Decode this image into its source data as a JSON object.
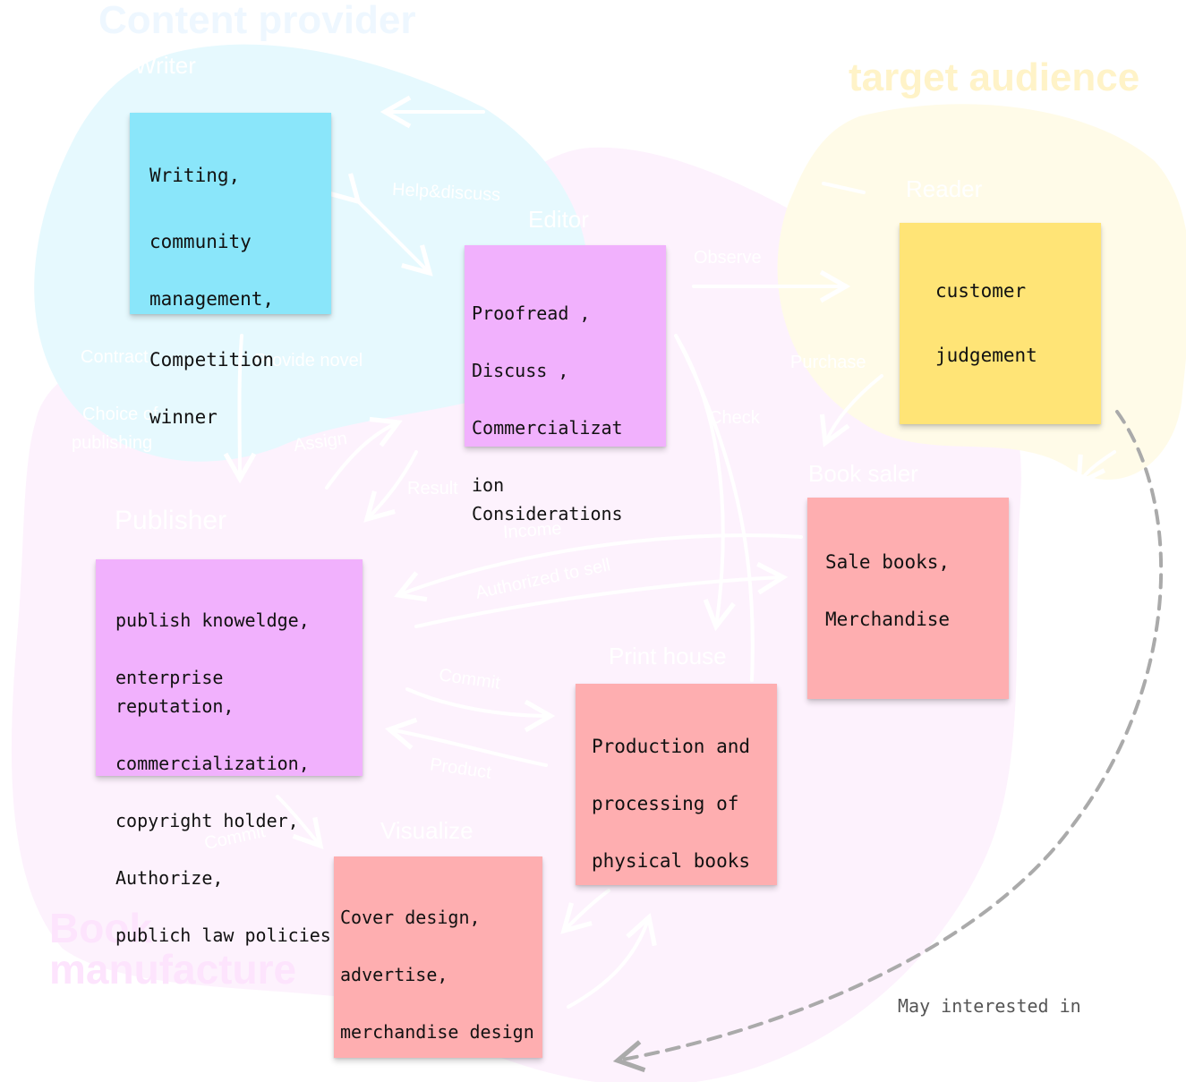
{
  "colors": {
    "content_blob": "#e6f9fe",
    "audience_blob": "#fffbe8",
    "manufacture_blob": "#fdf2fd",
    "note_cyan": "#8ae6fa",
    "note_magenta": "#f1b1fd",
    "note_yellow": "#ffe476",
    "note_pink": "#feaeb0",
    "dashed_arrow": "#aaaaaa"
  },
  "regions": {
    "content_provider": "Content provider",
    "target_audience": "target audience",
    "book_manufacture_line1": "Book",
    "book_manufacture_line2": "manufacture"
  },
  "roles": {
    "writer": "Writer",
    "editor": "Editor",
    "reader": "Reader",
    "book_saler": "Book saler",
    "publisher": "Publisher",
    "print_house": "Print house",
    "visualize": "Visualize"
  },
  "edges": {
    "help_discuss": "Help&discuss",
    "observe": "Observe",
    "purchase": "Purchase",
    "provide_novel": "Provide novel",
    "contract": "Contract",
    "choice_of_publishing_line1": "Choice of",
    "choice_of_publishing_line2": "publishing",
    "assign": "Assign",
    "result": "Result",
    "check": "Check",
    "income": "Income",
    "authorized_to_sell": "Authorized to sell",
    "commit_print": "Commit",
    "product": "Product",
    "commit_visualize": "Commit"
  },
  "notes": {
    "writer": [
      "Writing,",
      "community",
      "management,",
      "Competition",
      "winner"
    ],
    "editor": [
      "Proofread ,",
      "Discuss ,",
      "Commercializat",
      "ion Considerations"
    ],
    "reader": [
      "customer",
      "judgement"
    ],
    "book_saler": [
      "Sale books,",
      "Merchandise"
    ],
    "publisher": [
      "publish knoweldge,",
      "enterprise reputation,",
      "commercialization,",
      "copyright holder,",
      "Authorize,",
      "publich law policies"
    ],
    "print_house": [
      "Production and",
      "processing of",
      "physical books"
    ],
    "visualize": [
      "Cover design,",
      "advertise,",
      "merchandise design"
    ]
  },
  "interest_label": "May interested in"
}
